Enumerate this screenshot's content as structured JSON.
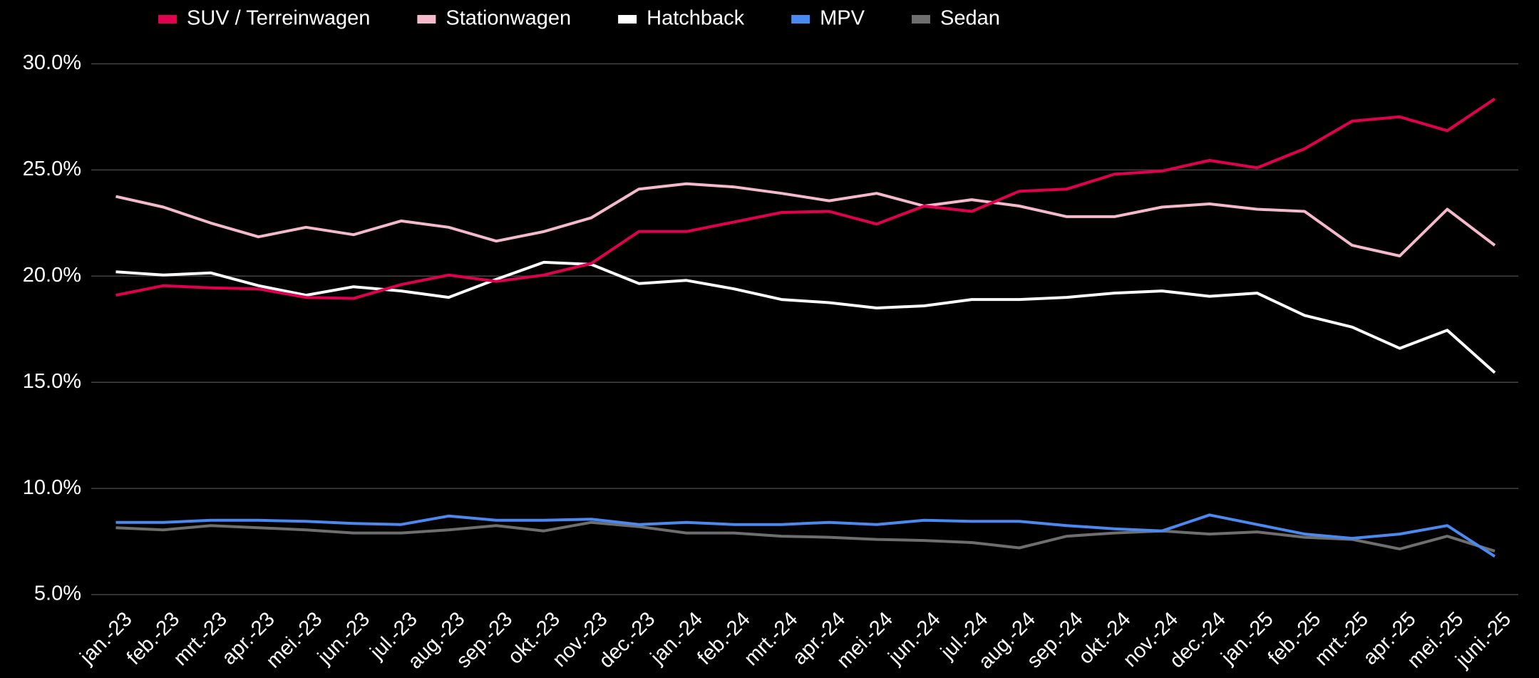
{
  "chart_data": {
    "type": "line",
    "categories": [
      "jan.-23",
      "feb.-23",
      "mrt.-23",
      "apr.-23",
      "mei.-23",
      "jun.-23",
      "jul.-23",
      "aug.-23",
      "sep.-23",
      "okt.-23",
      "nov.-23",
      "dec.-23",
      "jan.-24",
      "feb.-24",
      "mrt.-24",
      "apr.-24",
      "mei.-24",
      "jun.-24",
      "jul.-24",
      "aug.-24",
      "sep.-24",
      "okt.-24",
      "nov.-24",
      "dec.-24",
      "jan.-25",
      "feb.-25",
      "mrt.-25",
      "apr.-25",
      "mei.-25",
      "juni.-25"
    ],
    "series": [
      {
        "name": "SUV / Terreinwagen",
        "color": "#e0004f",
        "values": [
          19.1,
          19.55,
          19.45,
          19.4,
          19.0,
          18.95,
          19.6,
          20.05,
          19.75,
          20.05,
          20.6,
          22.1,
          22.1,
          22.55,
          23.0,
          23.05,
          22.45,
          23.3,
          23.05,
          24.0,
          24.1,
          24.8,
          24.95,
          25.45,
          25.1,
          26.0,
          27.3,
          27.5,
          26.85,
          28.35
        ]
      },
      {
        "name": "Stationwagen",
        "color": "#f5b9cc",
        "values": [
          23.75,
          23.25,
          22.5,
          21.85,
          22.3,
          21.95,
          22.6,
          22.3,
          21.65,
          22.1,
          22.75,
          24.1,
          24.35,
          24.2,
          23.9,
          23.55,
          23.9,
          23.3,
          23.6,
          23.3,
          22.8,
          22.8,
          23.25,
          23.4,
          23.15,
          23.05,
          21.45,
          20.95,
          23.15,
          21.45
        ]
      },
      {
        "name": "Hatchback",
        "color": "#ffffff",
        "values": [
          20.2,
          20.05,
          20.15,
          19.55,
          19.1,
          19.5,
          19.3,
          19.0,
          19.85,
          20.65,
          20.55,
          19.65,
          19.8,
          19.4,
          18.9,
          18.75,
          18.5,
          18.6,
          18.9,
          18.9,
          19.0,
          19.2,
          19.3,
          19.05,
          19.2,
          18.15,
          17.6,
          16.6,
          17.45,
          15.45
        ]
      },
      {
        "name": "MPV",
        "color": "#4a8af0",
        "values": [
          8.4,
          8.4,
          8.5,
          8.5,
          8.45,
          8.35,
          8.3,
          8.7,
          8.5,
          8.5,
          8.55,
          8.3,
          8.4,
          8.3,
          8.3,
          8.4,
          8.3,
          8.5,
          8.45,
          8.45,
          8.25,
          8.1,
          8.0,
          8.75,
          8.3,
          7.85,
          7.65,
          7.85,
          8.25,
          6.8
        ]
      },
      {
        "name": "Sedan",
        "color": "#6e6e6e",
        "values": [
          8.15,
          8.05,
          8.25,
          8.15,
          8.05,
          7.9,
          7.9,
          8.05,
          8.25,
          8.0,
          8.4,
          8.2,
          7.9,
          7.9,
          7.75,
          7.7,
          7.6,
          7.55,
          7.45,
          7.2,
          7.75,
          7.9,
          8.0,
          7.85,
          7.95,
          7.7,
          7.6,
          7.15,
          7.75,
          7.05
        ]
      }
    ],
    "ylim": [
      5,
      30
    ],
    "yticks": [
      {
        "value": 5,
        "label": "5.0%"
      },
      {
        "value": 10,
        "label": "10.0%"
      },
      {
        "value": 15,
        "label": "15.0%"
      },
      {
        "value": 20,
        "label": "20.0%"
      },
      {
        "value": 25,
        "label": "25.0%"
      },
      {
        "value": 30,
        "label": "30.0%"
      }
    ],
    "grid": true,
    "legend": "top"
  }
}
